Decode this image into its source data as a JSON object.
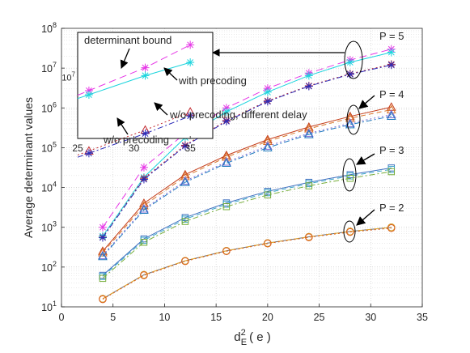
{
  "chart_data": {
    "type": "line",
    "ylabel": "Average determinant values",
    "xlabel": {
      "base": "d",
      "sup": "2",
      "sub": "E",
      "arg": "( e )"
    },
    "xlim": [
      0,
      35
    ],
    "ylim_log10": [
      1,
      8
    ],
    "yscale": "log",
    "grid": true,
    "x_ticks": [
      "0",
      "5",
      "10",
      "15",
      "20",
      "25",
      "30",
      "35"
    ],
    "y_ticks": [
      {
        "base": "10",
        "exp": "1"
      },
      {
        "base": "10",
        "exp": "2"
      },
      {
        "base": "10",
        "exp": "3"
      },
      {
        "base": "10",
        "exp": "4"
      },
      {
        "base": "10",
        "exp": "5"
      },
      {
        "base": "10",
        "exp": "6"
      },
      {
        "base": "10",
        "exp": "7"
      },
      {
        "base": "10",
        "exp": "8"
      }
    ],
    "x": [
      4,
      8,
      12,
      16,
      20,
      24,
      28,
      32
    ],
    "groups": [
      {
        "label": "P = 5",
        "series": [
          {
            "style": "determinant_bound",
            "color": "#e636e6",
            "dash": "9,5",
            "marker": "asterisk",
            "values": [
              1000,
              32000,
              230000,
              1000000,
              3100000,
              7500000,
              16000000,
              30000000
            ]
          },
          {
            "style": "with_precoding",
            "color": "#1ad4dd",
            "dash": "",
            "marker": "asterisk",
            "values": [
              600,
              18000,
              180000,
              800000,
              2500000,
              6500000,
              14000000,
              25000000
            ]
          },
          {
            "style": "without_precoding_diff_delay",
            "color": "#c1272d",
            "dash": "2,3",
            "marker": "asterisk",
            "values": [
              560,
              17000,
              115000,
              480000,
              1500000,
              3600000,
              7200000,
              12500000
            ]
          },
          {
            "style": "without_precoding",
            "color": "#2b2bb8",
            "dash": "7,3,2,3",
            "marker": "asterisk",
            "values": [
              550,
              16000,
              110000,
              460000,
              1450000,
              3500000,
              7000000,
              12000000
            ]
          }
        ]
      },
      {
        "label": "P = 4",
        "series": [
          {
            "style": "determinant_bound",
            "color": "#c43c18",
            "dash": "",
            "marker": "triangle",
            "values": [
              250,
              4000,
              21000,
              64000,
              160000,
              330000,
              610000,
              1050000
            ]
          },
          {
            "style": "with_precoding",
            "color": "#d9742a",
            "dash": "6,4",
            "marker": "triangle",
            "values": [
              230,
              3500,
              19000,
              58000,
              145000,
              300000,
              550000,
              900000
            ]
          },
          {
            "style": "without_precoding_diff_delay",
            "color": "#7d6bd6",
            "dash": "2,3",
            "marker": "triangle",
            "values": [
              195,
              2900,
              14500,
              44000,
              110000,
              230000,
              410000,
              680000
            ]
          },
          {
            "style": "without_precoding",
            "color": "#1f7abf",
            "dash": "7,3,2,3",
            "marker": "triangle",
            "values": [
              185,
              2700,
              13500,
              41000,
              100000,
              215000,
              380000,
              620000
            ]
          }
        ]
      },
      {
        "label": "P = 3",
        "series": [
          {
            "style": "determinant_bound",
            "color": "#3d6fbf",
            "dash": "",
            "marker": "square",
            "values": [
              62,
              510,
              1750,
              4100,
              8000,
              13500,
              21000,
              31000
            ]
          },
          {
            "style": "with_precoding",
            "color": "#3aa6c9",
            "dash": "6,4",
            "marker": "square",
            "values": [
              58,
              470,
              1600,
              3800,
              7400,
              12500,
              19500,
              28500
            ]
          },
          {
            "style": "without_precoding",
            "color": "#76ad3a",
            "dash": "7,3,2,3",
            "marker": "square",
            "values": [
              52,
              420,
              1400,
              3300,
              6500,
              11000,
              17000,
              25000
            ]
          }
        ]
      },
      {
        "label": "P = 2",
        "series": [
          {
            "style": "determinant_bound",
            "color": "#6b6b6b",
            "dash": "",
            "marker": "circle",
            "values": [
              16,
              64,
              144,
              256,
              400,
              576,
              784,
              1000
            ]
          },
          {
            "style": "with_precoding",
            "color": "#e5ab2a",
            "dash": "6,4",
            "marker": "circle",
            "values": [
              16,
              64,
              144,
              256,
              400,
              576,
              784,
              1000
            ]
          },
          {
            "style": "without_precoding",
            "color": "#d95a1a",
            "dash": "2,3",
            "marker": "circle",
            "values": [
              15.5,
              62,
              140,
              250,
              390,
              560,
              760,
              950
            ]
          }
        ]
      }
    ],
    "inset": {
      "xlim": [
        25,
        37
      ],
      "ylim_log10": [
        6.15,
        7.62
      ],
      "x_ticks": [
        "25",
        "30",
        "35"
      ],
      "y_tick": {
        "base": "10",
        "exp": "7"
      },
      "x": [
        26,
        31,
        35
      ],
      "series": [
        {
          "color": "#e636e6",
          "dash": "9,5",
          "marker": "asterisk",
          "values": [
            6500000,
            13500000,
            28000000
          ]
        },
        {
          "color": "#1ad4dd",
          "dash": "",
          "marker": "asterisk",
          "values": [
            5700000,
            10500000,
            16000000
          ]
        },
        {
          "color": "#c1272d",
          "dash": "2,3",
          "marker": "triangle",
          "values": [
            950000,
            1850000,
            3300000
          ]
        },
        {
          "color": "#2b2bb8",
          "dash": "7,3,2,3",
          "marker": "asterisk",
          "values": [
            880000,
            1650000,
            2900000
          ]
        }
      ],
      "annotations": {
        "determinant_bound": "determinant bound",
        "with_precoding": "with precoding",
        "without_precoding_diff_delay": "w/o precoding, different delay",
        "without_precoding": "w/o precoding"
      }
    }
  }
}
